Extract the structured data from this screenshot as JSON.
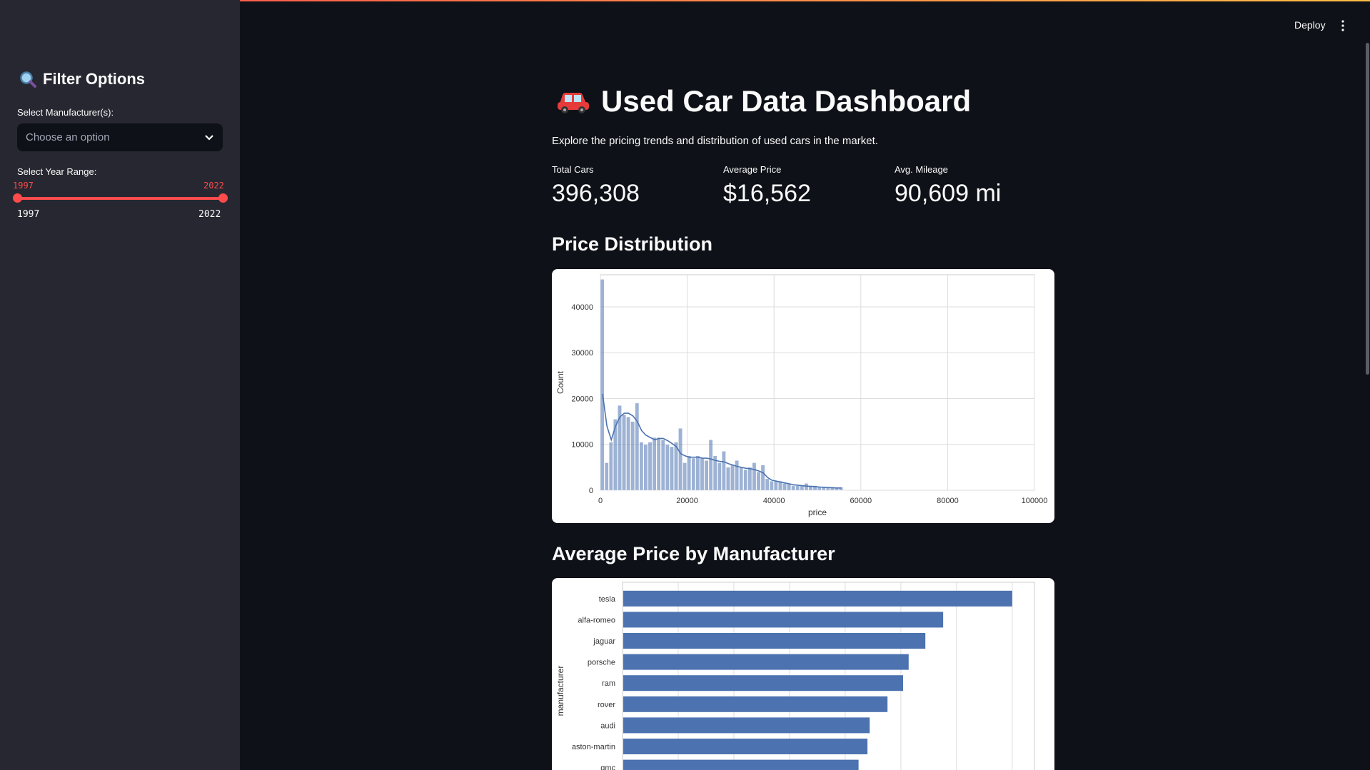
{
  "sidebar": {
    "title": "Filter Options",
    "manufacturer_label": "Select Manufacturer(s):",
    "manufacturer_placeholder": "Choose an option",
    "year_label": "Select Year Range:",
    "year_min": "1997",
    "year_max": "2022",
    "year_low_value": "1997",
    "year_high_value": "2022"
  },
  "header": {
    "deploy_label": "Deploy"
  },
  "main": {
    "title": "Used Car Data Dashboard",
    "subtitle": "Explore the pricing trends and distribution of used cars in the market.",
    "metrics": [
      {
        "label": "Total Cars",
        "value": "396,308"
      },
      {
        "label": "Average Price",
        "value": "$16,562"
      },
      {
        "label": "Avg. Mileage",
        "value": "90,609 mi"
      }
    ],
    "price_distribution_heading": "Price Distribution",
    "avg_price_heading": "Average Price by Manufacturer"
  },
  "colors": {
    "accent": "#ff4b4b",
    "bar": "#4c72b0",
    "background": "#0e1117",
    "sidebar": "#262730"
  },
  "chart_data": [
    {
      "type": "bar",
      "subtype": "histogram-with-kde",
      "xlabel": "price",
      "ylabel": "Count",
      "xlim": [
        0,
        100000
      ],
      "ylim": [
        0,
        47000
      ],
      "xticks": [
        0,
        20000,
        40000,
        60000,
        80000,
        100000
      ],
      "yticks": [
        0,
        10000,
        20000,
        30000,
        40000
      ],
      "grid": true,
      "bin_width": 1000,
      "x": [
        500,
        1500,
        2500,
        3500,
        4500,
        5500,
        6500,
        7500,
        8500,
        9500,
        10500,
        11500,
        12500,
        13500,
        14500,
        15500,
        16500,
        17500,
        18500,
        19500,
        20500,
        21500,
        22500,
        23500,
        24500,
        25500,
        26500,
        27500,
        28500,
        29500,
        30500,
        31500,
        32500,
        33500,
        34500,
        35500,
        36500,
        37500,
        38500,
        39500,
        40500,
        41500,
        42500,
        43500,
        44500,
        45500,
        46500,
        47500,
        48500,
        49500,
        50500,
        51500,
        52500,
        53500,
        54500,
        55500
      ],
      "values": [
        46000,
        6000,
        10500,
        15500,
        18500,
        16500,
        16000,
        15000,
        19000,
        10500,
        10000,
        10500,
        11500,
        11500,
        11000,
        10000,
        9500,
        10500,
        13500,
        6000,
        7500,
        7000,
        7500,
        7000,
        6500,
        11000,
        7500,
        6000,
        8500,
        5000,
        5500,
        6500,
        5000,
        4500,
        5000,
        6000,
        4000,
        5500,
        2500,
        2000,
        2000,
        2000,
        1500,
        1500,
        1000,
        1000,
        1000,
        1500,
        1000,
        1000,
        800,
        800,
        700,
        700,
        600,
        700
      ],
      "kde": {
        "x": [
          500,
          1500,
          2500,
          3500,
          4500,
          5500,
          6500,
          7500,
          8500,
          9500,
          10500,
          11500,
          12500,
          13500,
          14500,
          15500,
          16500,
          17500,
          18500,
          19500,
          20500,
          21500,
          22500,
          23500,
          24500,
          25500,
          26500,
          27500,
          28500,
          29500,
          30500,
          31500,
          32500,
          33500,
          34500,
          35500,
          36500,
          37500,
          38500,
          39500,
          40500,
          41500,
          42500,
          43500,
          44500,
          45500,
          46500,
          47500,
          48500,
          49500,
          50500,
          51500,
          52500,
          53500,
          54500,
          55500
        ],
        "values": [
          21000,
          14000,
          11000,
          14000,
          16000,
          16800,
          16800,
          16200,
          15000,
          13000,
          12000,
          11500,
          11000,
          11300,
          11300,
          10800,
          10200,
          9500,
          8000,
          7500,
          7200,
          7200,
          7200,
          7000,
          7000,
          6800,
          6500,
          6300,
          6200,
          5800,
          5500,
          5200,
          5000,
          4800,
          4700,
          4500,
          4200,
          3800,
          2800,
          2200,
          2000,
          1800,
          1600,
          1400,
          1200,
          1100,
          1000,
          900,
          850,
          800,
          700,
          650,
          600,
          550,
          500,
          500
        ]
      }
    },
    {
      "type": "bar",
      "orientation": "horizontal",
      "ylabel": "manufacturer",
      "categories": [
        "tesla",
        "alfa-romeo",
        "jaguar",
        "porsche",
        "ram",
        "rover",
        "audi",
        "aston-martin",
        "gmc"
      ],
      "values": [
        35000,
        28800,
        27200,
        25700,
        25200,
        23800,
        22200,
        22000,
        21200
      ],
      "xlim": [
        0,
        37000
      ],
      "grid": true
    }
  ]
}
